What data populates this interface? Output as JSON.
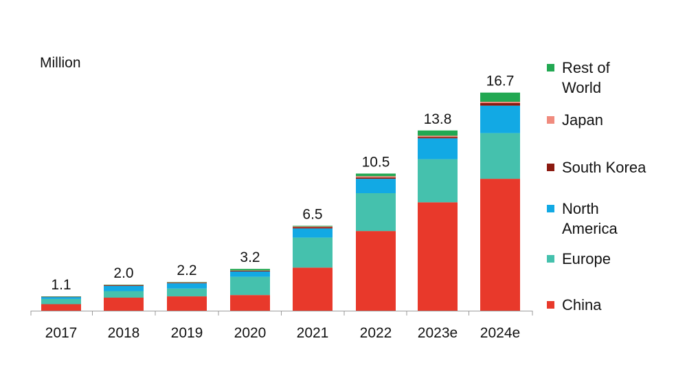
{
  "chart_data": {
    "type": "bar",
    "stacked": true,
    "unit_label": "Million",
    "categories": [
      "2017",
      "2018",
      "2019",
      "2020",
      "2021",
      "2022",
      "2023e",
      "2024e"
    ],
    "totals": [
      "1.1",
      "2.0",
      "2.2",
      "3.2",
      "6.5",
      "10.5",
      "13.8",
      "16.7"
    ],
    "series": [
      {
        "name": "China",
        "color": "#e8392b",
        "values": [
          0.5,
          1.0,
          1.1,
          1.2,
          3.3,
          6.1,
          8.3,
          10.1
        ]
      },
      {
        "name": "Europe",
        "color": "#45c1ad",
        "values": [
          0.4,
          0.5,
          0.6,
          1.4,
          2.3,
          2.9,
          3.3,
          3.5
        ]
      },
      {
        "name": "North America",
        "color": "#12a9e4",
        "values": [
          0.15,
          0.4,
          0.4,
          0.4,
          0.7,
          1.1,
          1.6,
          2.1
        ]
      },
      {
        "name": "South Korea",
        "color": "#8b1a10",
        "values": [
          0.02,
          0.05,
          0.05,
          0.05,
          0.1,
          0.1,
          0.1,
          0.2
        ]
      },
      {
        "name": "Japan",
        "color": "#f08b7e",
        "values": [
          0.02,
          0.02,
          0.02,
          0.03,
          0.05,
          0.1,
          0.1,
          0.1
        ]
      },
      {
        "name": "Rest of World",
        "color": "#22a852",
        "values": [
          0.01,
          0.03,
          0.03,
          0.12,
          0.05,
          0.2,
          0.4,
          0.7
        ]
      }
    ],
    "legend_position": "right",
    "grid": false,
    "ylim": [
      0,
      17
    ]
  },
  "legend": [
    {
      "name": "Rest of World",
      "lines": [
        "Rest of",
        "World"
      ],
      "color": "#22a852"
    },
    {
      "name": "Japan",
      "lines": [
        "Japan"
      ],
      "color": "#f08b7e"
    },
    {
      "name": "South Korea",
      "lines": [
        "South Korea"
      ],
      "color": "#8b1a10"
    },
    {
      "name": "North America",
      "lines": [
        "North",
        "America"
      ],
      "color": "#12a9e4"
    },
    {
      "name": "Europe",
      "lines": [
        "Europe"
      ],
      "color": "#45c1ad"
    },
    {
      "name": "China",
      "lines": [
        "China"
      ],
      "color": "#e8392b"
    }
  ]
}
